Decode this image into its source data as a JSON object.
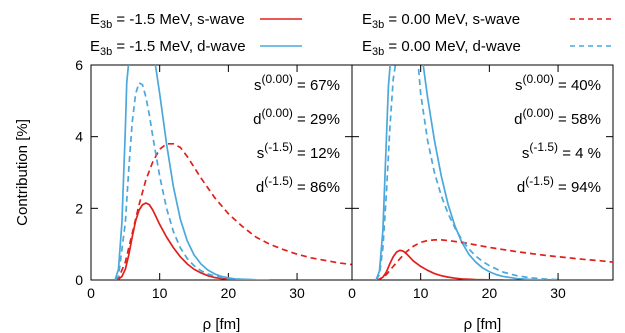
{
  "colors": {
    "s_wave": "#e0201b",
    "d_wave": "#4aa8dc",
    "axis": "#000000"
  },
  "legend": [
    {
      "e_label": "E",
      "sub": "3b",
      "rest": " = -1.5 MeV, s-wave",
      "style": "solid",
      "wave": "s"
    },
    {
      "e_label": "E",
      "sub": "3b",
      "rest": " = -1.5 MeV, d-wave",
      "style": "solid",
      "wave": "d"
    },
    {
      "e_label": "E",
      "sub": "3b",
      "rest": " = 0.00 MeV, s-wave",
      "style": "dashed",
      "wave": "s"
    },
    {
      "e_label": "E",
      "sub": "3b",
      "rest": " = 0.00 MeV, d-wave",
      "style": "dashed",
      "wave": "d"
    }
  ],
  "chart_data": [
    {
      "type": "line",
      "panel": "left",
      "xlabel": "ρ [fm]",
      "ylabel": "Contribution [%]",
      "xlim": [
        0,
        38
      ],
      "ylim": [
        0,
        6
      ],
      "xticks": [
        0,
        10,
        20,
        30
      ],
      "yticks": [
        0,
        2,
        4,
        6
      ],
      "annotations": [
        {
          "base": "s",
          "sup": "(0.00)",
          "value": " = 67%"
        },
        {
          "base": "d",
          "sup": "(0.00)",
          "value": " = 29%"
        },
        {
          "base": "s",
          "sup": "(-1.5)",
          "value": " = 12%"
        },
        {
          "base": "d",
          "sup": "(-1.5)",
          "value": " = 86%"
        }
      ],
      "series": [
        {
          "wave": "s",
          "style": "solid",
          "x": [
            3.5,
            4,
            4.5,
            5,
            5.5,
            6,
            6.5,
            7,
            7.5,
            8,
            8.5,
            9,
            9.5,
            10,
            11,
            12,
            13,
            14,
            15,
            16,
            17,
            18,
            19,
            20,
            21,
            22
          ],
          "y": [
            0,
            0.02,
            0.1,
            0.3,
            0.7,
            1.2,
            1.65,
            1.95,
            2.1,
            2.15,
            2.1,
            1.95,
            1.75,
            1.55,
            1.2,
            0.9,
            0.65,
            0.45,
            0.3,
            0.2,
            0.12,
            0.07,
            0.04,
            0.02,
            0.01,
            0
          ]
        },
        {
          "wave": "d",
          "style": "solid",
          "x": [
            3.5,
            4,
            4.5,
            5,
            5.2,
            5.5,
            9.3,
            10,
            11,
            12,
            13,
            14,
            15,
            16,
            17,
            18,
            19,
            20,
            21,
            22,
            24,
            26
          ],
          "y": [
            0,
            0.3,
            1.6,
            4.2,
            5.5,
            6.1,
            6.1,
            5.2,
            3.8,
            2.6,
            1.7,
            1.1,
            0.7,
            0.45,
            0.28,
            0.17,
            0.1,
            0.06,
            0.03,
            0.02,
            0.005,
            0
          ]
        },
        {
          "wave": "s",
          "style": "dashed",
          "x": [
            3.5,
            4,
            5,
            6,
            7,
            8,
            9,
            10,
            11,
            12,
            13,
            14,
            15,
            16,
            18,
            20,
            22,
            24,
            26,
            28,
            30,
            32,
            34,
            36,
            38
          ],
          "y": [
            0,
            0.05,
            0.5,
            1.3,
            2.1,
            2.8,
            3.3,
            3.65,
            3.8,
            3.8,
            3.7,
            3.45,
            3.15,
            2.85,
            2.3,
            1.85,
            1.5,
            1.2,
            1.0,
            0.85,
            0.72,
            0.62,
            0.55,
            0.48,
            0.43
          ]
        },
        {
          "wave": "d",
          "style": "dashed",
          "x": [
            3.5,
            4,
            5,
            5.5,
            6,
            6.5,
            7,
            7.5,
            8,
            8.5,
            9,
            10,
            11,
            12,
            13,
            14,
            15,
            16,
            17,
            18,
            19,
            20,
            22,
            24
          ],
          "y": [
            0,
            0.1,
            1.6,
            3.1,
            4.4,
            5.2,
            5.5,
            5.45,
            5.1,
            4.6,
            4.0,
            2.9,
            2.0,
            1.35,
            0.9,
            0.6,
            0.4,
            0.26,
            0.17,
            0.11,
            0.07,
            0.04,
            0.015,
            0
          ]
        }
      ]
    },
    {
      "type": "line",
      "panel": "right",
      "xlabel": "ρ [fm]",
      "xlim": [
        0,
        38
      ],
      "ylim": [
        0,
        6
      ],
      "xticks": [
        0,
        10,
        20,
        30
      ],
      "yticks": [
        0,
        2,
        4,
        6
      ],
      "annotations": [
        {
          "base": "s",
          "sup": "(0.00)",
          "value": " = 40%"
        },
        {
          "base": "d",
          "sup": "(0.00)",
          "value": " = 58%"
        },
        {
          "base": "s",
          "sup": "(-1.5)",
          "value": " =  4 %"
        },
        {
          "base": "d",
          "sup": "(-1.5)",
          "value": " = 94%"
        }
      ],
      "series": [
        {
          "wave": "s",
          "style": "solid",
          "x": [
            3.5,
            4,
            4.5,
            5,
            5.5,
            6,
            6.5,
            7,
            7.5,
            8,
            8.5,
            9,
            10,
            11,
            12,
            13,
            14,
            15,
            16,
            17,
            18,
            20,
            22
          ],
          "y": [
            0,
            0.02,
            0.08,
            0.22,
            0.45,
            0.65,
            0.78,
            0.83,
            0.8,
            0.72,
            0.62,
            0.52,
            0.38,
            0.27,
            0.18,
            0.12,
            0.08,
            0.05,
            0.03,
            0.02,
            0.01,
            0.003,
            0
          ]
        },
        {
          "wave": "d",
          "style": "solid",
          "x": [
            3.5,
            4,
            4.5,
            5,
            5.3,
            5.6,
            10.3,
            11,
            12,
            13,
            14,
            15,
            16,
            17,
            18,
            19,
            20,
            21,
            22,
            24,
            26,
            28
          ],
          "y": [
            0,
            0.25,
            1.4,
            3.9,
            5.4,
            6.1,
            6.1,
            5.1,
            3.9,
            2.9,
            2.1,
            1.5,
            1.05,
            0.72,
            0.5,
            0.34,
            0.23,
            0.15,
            0.1,
            0.04,
            0.015,
            0
          ]
        },
        {
          "wave": "s",
          "style": "dashed",
          "x": [
            3.5,
            4,
            5,
            6,
            7,
            8,
            9,
            10,
            11,
            12,
            13,
            14,
            16,
            18,
            20,
            22,
            24,
            26,
            28,
            30,
            32,
            34,
            36,
            38
          ],
          "y": [
            0,
            0.02,
            0.15,
            0.38,
            0.6,
            0.8,
            0.95,
            1.05,
            1.1,
            1.12,
            1.12,
            1.1,
            1.05,
            0.98,
            0.91,
            0.85,
            0.79,
            0.74,
            0.69,
            0.65,
            0.61,
            0.57,
            0.54,
            0.5
          ]
        },
        {
          "wave": "d",
          "style": "dashed",
          "x": [
            3.5,
            4,
            4.5,
            5,
            5.5,
            6,
            6.4,
            9.6,
            10,
            11,
            12,
            13,
            14,
            15,
            16,
            17,
            18,
            19,
            20,
            22,
            24,
            26,
            28,
            30
          ],
          "y": [
            0,
            0.15,
            0.9,
            2.4,
            4.2,
            5.6,
            6.1,
            6.1,
            5.2,
            3.9,
            3.0,
            2.35,
            1.85,
            1.45,
            1.12,
            0.87,
            0.67,
            0.52,
            0.4,
            0.22,
            0.12,
            0.06,
            0.03,
            0.01
          ]
        }
      ]
    }
  ]
}
